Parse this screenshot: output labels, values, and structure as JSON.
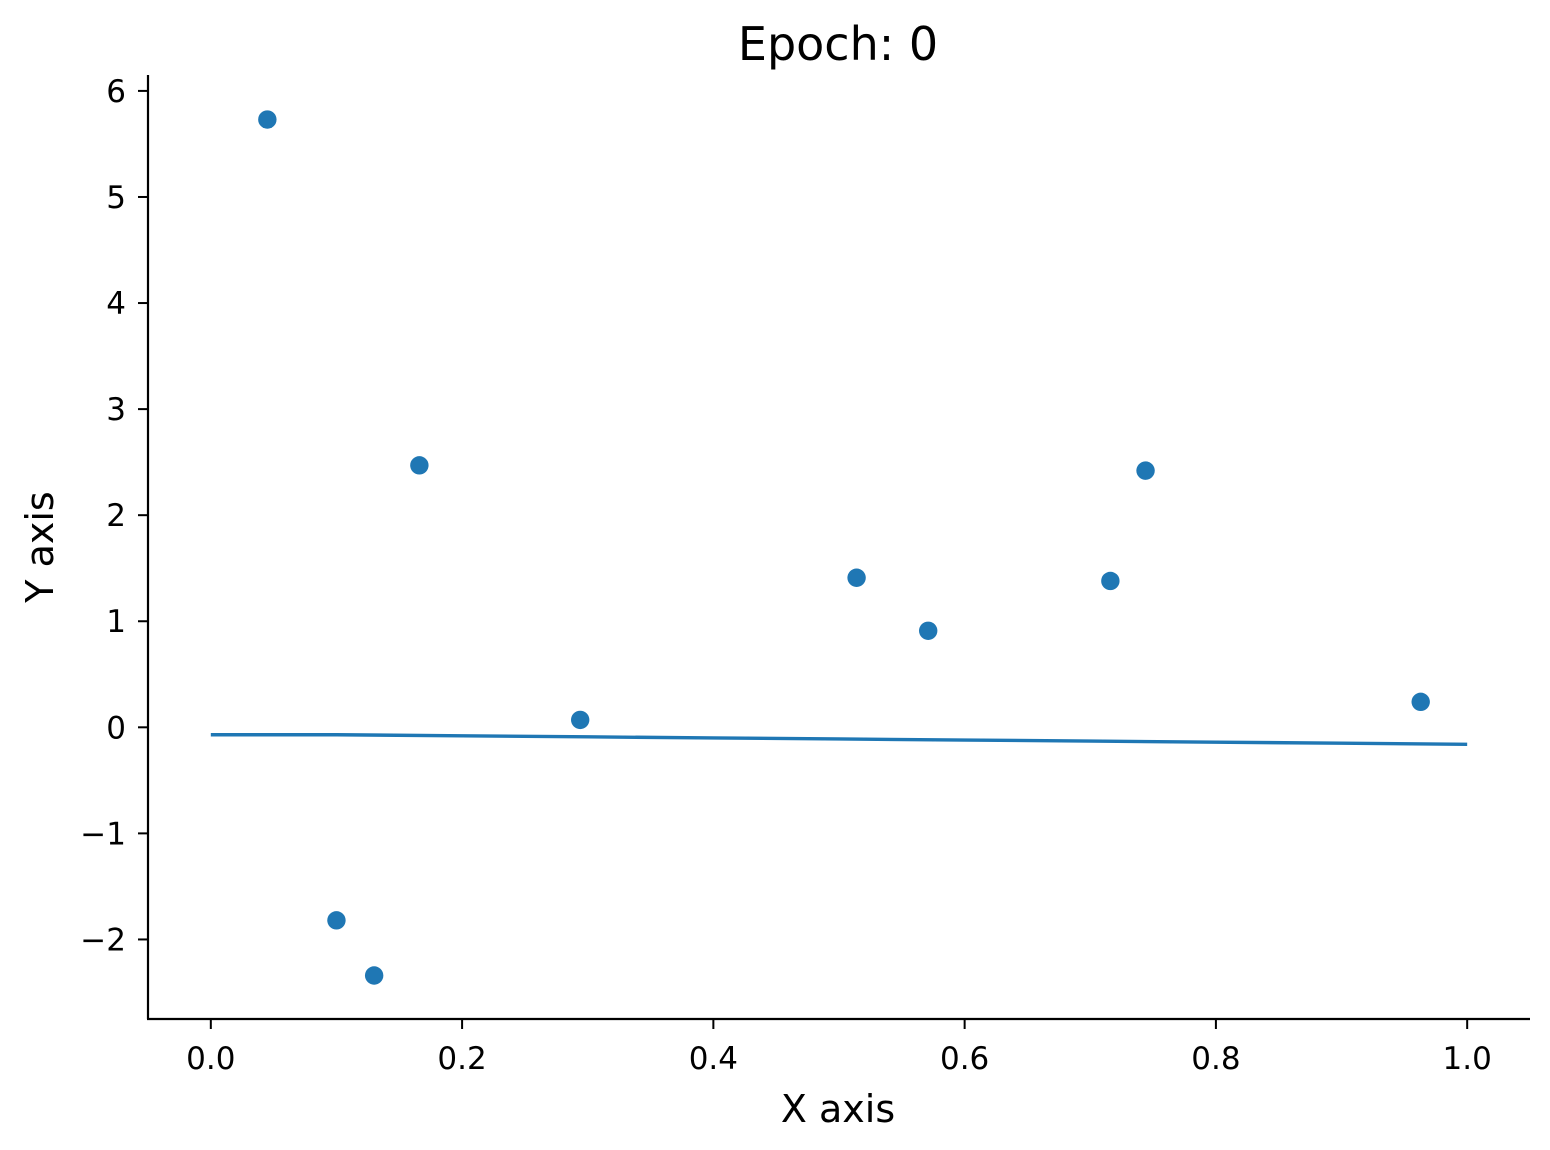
{
  "chart_data": {
    "type": "scatter",
    "title": "Epoch: 0",
    "xlabel": "X axis",
    "ylabel": "Y axis",
    "xlim": [
      -0.05,
      1.05
    ],
    "ylim": [
      -2.75,
      6.15
    ],
    "grid": false,
    "legend": "none",
    "colors": {
      "series": "#1f77b4",
      "axis": "#000000"
    },
    "xticks": [
      {
        "value": 0.0,
        "label": "0.0"
      },
      {
        "value": 0.2,
        "label": "0.2"
      },
      {
        "value": 0.4,
        "label": "0.4"
      },
      {
        "value": 0.6,
        "label": "0.6"
      },
      {
        "value": 0.8,
        "label": "0.8"
      },
      {
        "value": 1.0,
        "label": "1.0"
      }
    ],
    "yticks": [
      {
        "value": -2,
        "label": "−2"
      },
      {
        "value": -1,
        "label": "−1"
      },
      {
        "value": 0,
        "label": "0"
      },
      {
        "value": 1,
        "label": "1"
      },
      {
        "value": 2,
        "label": "2"
      },
      {
        "value": 3,
        "label": "3"
      },
      {
        "value": 4,
        "label": "4"
      },
      {
        "value": 5,
        "label": "5"
      },
      {
        "value": 6,
        "label": "6"
      }
    ],
    "series": [
      {
        "kind": "scatter",
        "points": [
          {
            "x": 0.045,
            "y": 5.73
          },
          {
            "x": 0.1,
            "y": -1.82
          },
          {
            "x": 0.13,
            "y": -2.34
          },
          {
            "x": 0.166,
            "y": 2.47
          },
          {
            "x": 0.294,
            "y": 0.07
          },
          {
            "x": 0.514,
            "y": 1.41
          },
          {
            "x": 0.571,
            "y": 0.91
          },
          {
            "x": 0.716,
            "y": 1.38
          },
          {
            "x": 0.744,
            "y": 2.42
          },
          {
            "x": 0.963,
            "y": 0.24
          }
        ]
      },
      {
        "kind": "line",
        "points": [
          {
            "x": 0.0,
            "y": -0.07
          },
          {
            "x": 0.1,
            "y": -0.07
          },
          {
            "x": 0.2,
            "y": -0.08
          },
          {
            "x": 0.3,
            "y": -0.09
          },
          {
            "x": 0.4,
            "y": -0.1
          },
          {
            "x": 0.5,
            "y": -0.11
          },
          {
            "x": 0.6,
            "y": -0.12
          },
          {
            "x": 0.7,
            "y": -0.13
          },
          {
            "x": 0.8,
            "y": -0.14
          },
          {
            "x": 0.9,
            "y": -0.15
          },
          {
            "x": 1.0,
            "y": -0.16
          }
        ]
      }
    ]
  }
}
